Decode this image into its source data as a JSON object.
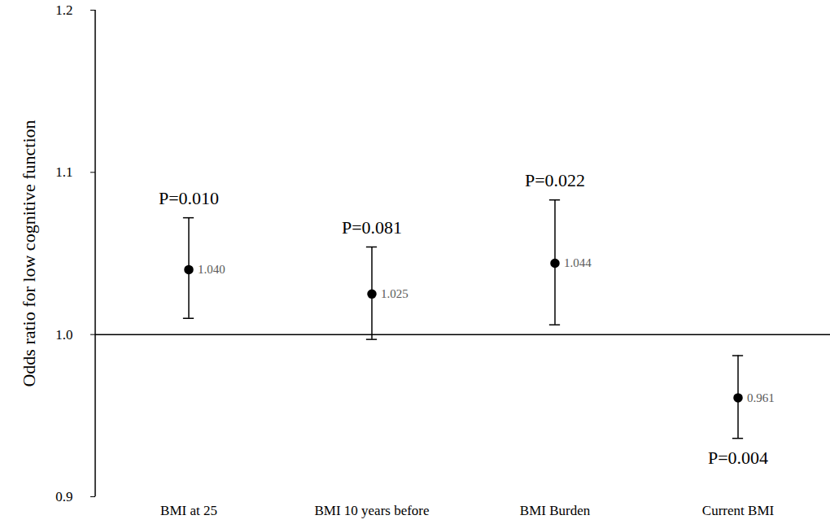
{
  "chart_data": {
    "type": "forest",
    "categories": [
      "BMI at 25",
      "BMI 10 years before",
      "BMI Burden",
      "Current BMI"
    ],
    "values": [
      1.04,
      1.025,
      1.044,
      0.961
    ],
    "value_labels": [
      "1.040",
      "1.025",
      "1.044",
      "0.961"
    ],
    "ci_lower": [
      1.01,
      0.997,
      1.006,
      0.936
    ],
    "ci_upper": [
      1.072,
      1.054,
      1.083,
      0.987
    ],
    "p_labels": [
      "P=0.010",
      "P=0.081",
      "P=0.022",
      "P=0.004"
    ],
    "y_label": "Odds ratio for low cognitive function",
    "ylim": [
      0.9,
      1.2
    ],
    "yticks": [
      0.9,
      {
        "value": 1,
        "label": "1.0"
      },
      1.1,
      1.2
    ],
    "reference_line": 1,
    "data_labels": true,
    "color": "#000000"
  }
}
